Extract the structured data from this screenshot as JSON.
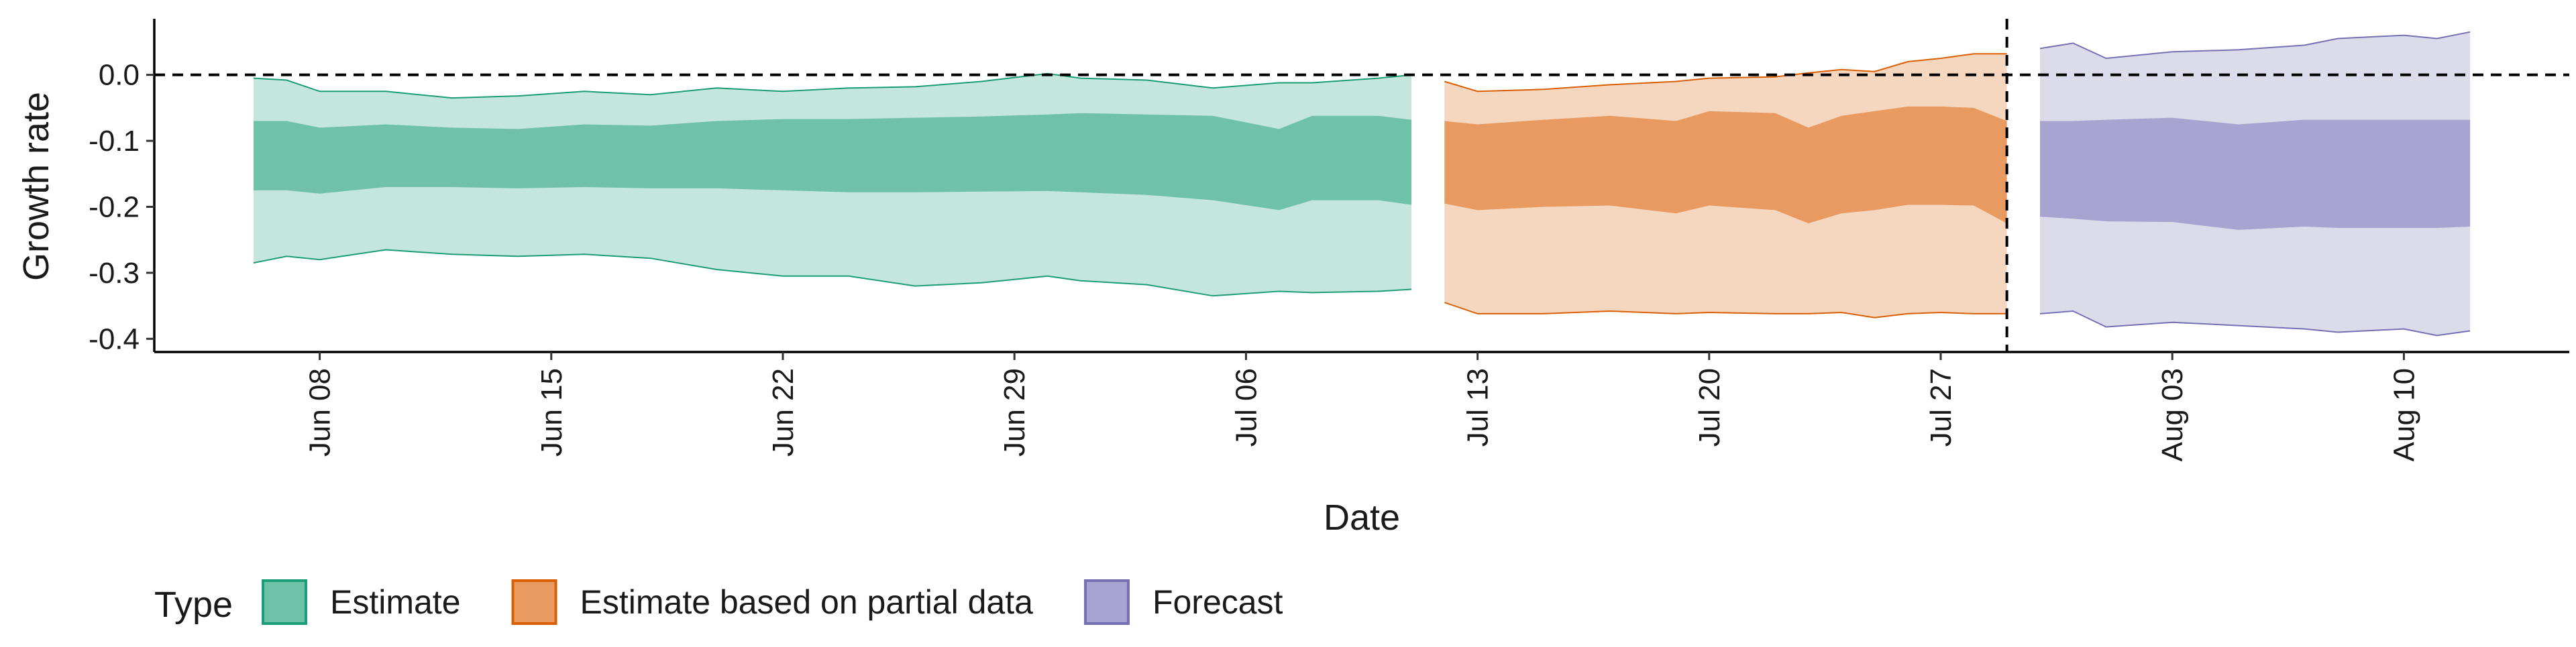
{
  "chart_data": {
    "type": "area",
    "title": "",
    "xlabel": "Date",
    "ylabel": "Growth rate",
    "x_domain": [
      "2020-06-03",
      "2020-08-15"
    ],
    "ylim": [
      -0.42,
      0.085
    ],
    "y_ticks": [
      0.0,
      -0.1,
      -0.2,
      -0.3,
      -0.4
    ],
    "y_tick_labels": [
      "0.0",
      "-0.1",
      "-0.2",
      "-0.3",
      "-0.4"
    ],
    "x_ticks": [
      "2020-06-08",
      "2020-06-15",
      "2020-06-22",
      "2020-06-29",
      "2020-07-06",
      "2020-07-13",
      "2020-07-20",
      "2020-07-27",
      "2020-08-03",
      "2020-08-10"
    ],
    "x_tick_labels": [
      "Jun 08",
      "Jun 15",
      "Jun 22",
      "Jun 29",
      "Jul 06",
      "Jul 13",
      "Jul 20",
      "Jul 27",
      "Aug 03",
      "Aug 10"
    ],
    "reference_lines": {
      "horizontal_y": 0.0,
      "vertical_date": "2020-07-29"
    },
    "grid": false,
    "legend": {
      "title": "Type",
      "position": "bottom-left",
      "entries": [
        "Estimate",
        "Estimate based on partial data",
        "Forecast"
      ]
    },
    "series": [
      {
        "name": "Estimate",
        "fill_outer": "#c5e6dc",
        "fill_inner": "#6fc2a8",
        "stroke": "#1b9e77",
        "points": [
          {
            "date": "2020-06-06",
            "lower90": -0.285,
            "lower50": -0.175,
            "upper50": -0.07,
            "upper90": -0.005
          },
          {
            "date": "2020-06-07",
            "lower90": -0.275,
            "lower50": -0.175,
            "upper50": -0.07,
            "upper90": -0.008
          },
          {
            "date": "2020-06-08",
            "lower90": -0.28,
            "lower50": -0.18,
            "upper50": -0.08,
            "upper90": -0.025
          },
          {
            "date": "2020-06-10",
            "lower90": -0.265,
            "lower50": -0.17,
            "upper50": -0.075,
            "upper90": -0.025
          },
          {
            "date": "2020-06-12",
            "lower90": -0.272,
            "lower50": -0.17,
            "upper50": -0.08,
            "upper90": -0.035
          },
          {
            "date": "2020-06-14",
            "lower90": -0.275,
            "lower50": -0.172,
            "upper50": -0.082,
            "upper90": -0.032
          },
          {
            "date": "2020-06-16",
            "lower90": -0.272,
            "lower50": -0.17,
            "upper50": -0.075,
            "upper90": -0.025
          },
          {
            "date": "2020-06-18",
            "lower90": -0.278,
            "lower50": -0.172,
            "upper50": -0.077,
            "upper90": -0.03
          },
          {
            "date": "2020-06-20",
            "lower90": -0.295,
            "lower50": -0.172,
            "upper50": -0.07,
            "upper90": -0.02
          },
          {
            "date": "2020-06-22",
            "lower90": -0.305,
            "lower50": -0.175,
            "upper50": -0.067,
            "upper90": -0.025
          },
          {
            "date": "2020-06-24",
            "lower90": -0.305,
            "lower50": -0.178,
            "upper50": -0.067,
            "upper90": -0.02
          },
          {
            "date": "2020-06-26",
            "lower90": -0.32,
            "lower50": -0.178,
            "upper50": -0.065,
            "upper90": -0.018
          },
          {
            "date": "2020-06-28",
            "lower90": -0.315,
            "lower50": -0.177,
            "upper50": -0.063,
            "upper90": -0.01
          },
          {
            "date": "2020-06-30",
            "lower90": -0.305,
            "lower50": -0.176,
            "upper50": -0.06,
            "upper90": 0.002
          },
          {
            "date": "2020-07-01",
            "lower90": -0.312,
            "lower50": -0.178,
            "upper50": -0.058,
            "upper90": -0.005
          },
          {
            "date": "2020-07-03",
            "lower90": -0.318,
            "lower50": -0.182,
            "upper50": -0.06,
            "upper90": -0.008
          },
          {
            "date": "2020-07-05",
            "lower90": -0.335,
            "lower50": -0.19,
            "upper50": -0.062,
            "upper90": -0.02
          },
          {
            "date": "2020-07-07",
            "lower90": -0.328,
            "lower50": -0.205,
            "upper50": -0.082,
            "upper90": -0.012
          },
          {
            "date": "2020-07-08",
            "lower90": -0.33,
            "lower50": -0.19,
            "upper50": -0.062,
            "upper90": -0.012
          },
          {
            "date": "2020-07-10",
            "lower90": -0.328,
            "lower50": -0.19,
            "upper50": -0.062,
            "upper90": -0.005
          },
          {
            "date": "2020-07-11",
            "lower90": -0.325,
            "lower50": -0.197,
            "upper50": -0.068,
            "upper90": 0.0
          }
        ]
      },
      {
        "name": "Estimate based on partial data",
        "fill_outer": "#f5d6bf",
        "fill_inner": "#e89a60",
        "stroke": "#d95f02",
        "points": [
          {
            "date": "2020-07-12",
            "lower90": -0.345,
            "lower50": -0.195,
            "upper50": -0.07,
            "upper90": -0.01
          },
          {
            "date": "2020-07-13",
            "lower90": -0.362,
            "lower50": -0.205,
            "upper50": -0.075,
            "upper90": -0.025
          },
          {
            "date": "2020-07-15",
            "lower90": -0.362,
            "lower50": -0.2,
            "upper50": -0.068,
            "upper90": -0.022
          },
          {
            "date": "2020-07-17",
            "lower90": -0.358,
            "lower50": -0.198,
            "upper50": -0.062,
            "upper90": -0.015
          },
          {
            "date": "2020-07-19",
            "lower90": -0.362,
            "lower50": -0.21,
            "upper50": -0.07,
            "upper90": -0.01
          },
          {
            "date": "2020-07-20",
            "lower90": -0.36,
            "lower50": -0.198,
            "upper50": -0.055,
            "upper90": -0.005
          },
          {
            "date": "2020-07-22",
            "lower90": -0.362,
            "lower50": -0.205,
            "upper50": -0.058,
            "upper90": -0.003
          },
          {
            "date": "2020-07-23",
            "lower90": -0.362,
            "lower50": -0.225,
            "upper50": -0.08,
            "upper90": 0.003
          },
          {
            "date": "2020-07-24",
            "lower90": -0.36,
            "lower50": -0.21,
            "upper50": -0.062,
            "upper90": 0.008
          },
          {
            "date": "2020-07-25",
            "lower90": -0.368,
            "lower50": -0.205,
            "upper50": -0.055,
            "upper90": 0.005
          },
          {
            "date": "2020-07-26",
            "lower90": -0.362,
            "lower50": -0.197,
            "upper50": -0.048,
            "upper90": 0.02
          },
          {
            "date": "2020-07-27",
            "lower90": -0.36,
            "lower50": -0.197,
            "upper50": -0.048,
            "upper90": 0.025
          },
          {
            "date": "2020-07-28",
            "lower90": -0.362,
            "lower50": -0.198,
            "upper50": -0.05,
            "upper90": 0.032
          },
          {
            "date": "2020-07-29",
            "lower90": -0.362,
            "lower50": -0.225,
            "upper50": -0.07,
            "upper90": 0.032
          }
        ]
      },
      {
        "name": "Forecast",
        "fill_outer": "#dcdbea",
        "fill_inner": "#a8a4d1",
        "stroke": "#7570b3",
        "points": [
          {
            "date": "2020-07-30",
            "lower90": -0.362,
            "lower50": -0.215,
            "upper50": -0.07,
            "upper90": 0.04
          },
          {
            "date": "2020-07-31",
            "lower90": -0.358,
            "lower50": -0.218,
            "upper50": -0.07,
            "upper90": 0.048
          },
          {
            "date": "2020-08-01",
            "lower90": -0.382,
            "lower50": -0.222,
            "upper50": -0.068,
            "upper90": 0.025
          },
          {
            "date": "2020-08-03",
            "lower90": -0.375,
            "lower50": -0.223,
            "upper50": -0.065,
            "upper90": 0.035
          },
          {
            "date": "2020-08-05",
            "lower90": -0.38,
            "lower50": -0.235,
            "upper50": -0.075,
            "upper90": 0.038
          },
          {
            "date": "2020-08-07",
            "lower90": -0.385,
            "lower50": -0.23,
            "upper50": -0.068,
            "upper90": 0.045
          },
          {
            "date": "2020-08-08",
            "lower90": -0.39,
            "lower50": -0.232,
            "upper50": -0.068,
            "upper90": 0.055
          },
          {
            "date": "2020-08-10",
            "lower90": -0.385,
            "lower50": -0.232,
            "upper50": -0.068,
            "upper90": 0.06
          },
          {
            "date": "2020-08-11",
            "lower90": -0.395,
            "lower50": -0.232,
            "upper50": -0.068,
            "upper90": 0.055
          },
          {
            "date": "2020-08-12",
            "lower90": -0.388,
            "lower50": -0.23,
            "upper50": -0.068,
            "upper90": 0.065
          }
        ]
      }
    ]
  }
}
